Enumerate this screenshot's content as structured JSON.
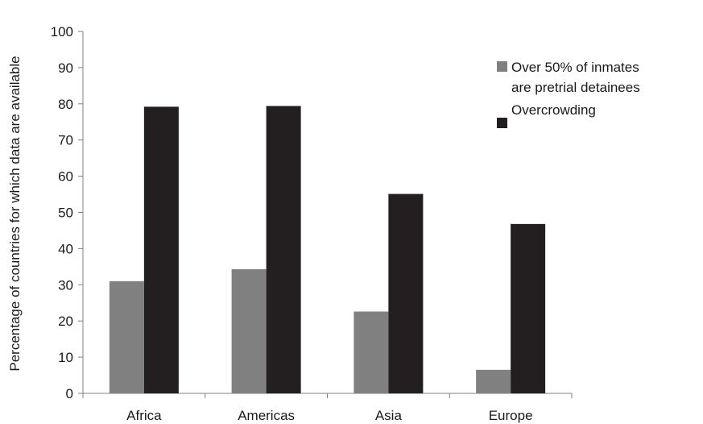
{
  "chart_data": {
    "type": "bar",
    "title": "",
    "xlabel": "",
    "ylabel": "Percentage of countries for which data are available",
    "categories": [
      "Africa",
      "Americas",
      "Asia",
      "Europe"
    ],
    "ylim": [
      0,
      100
    ],
    "yticks": [
      0,
      10,
      20,
      30,
      40,
      50,
      60,
      70,
      80,
      90,
      100
    ],
    "grid": false,
    "legend_position": "right",
    "series": [
      {
        "name": "Over 50% of inmates are pretrial detainees",
        "color": "#808080",
        "values": [
          31,
          34.3,
          22.6,
          6.5
        ]
      },
      {
        "name": "Overcrowding",
        "color": "#231f20",
        "values": [
          79.2,
          79.4,
          55.1,
          46.8
        ]
      }
    ]
  }
}
